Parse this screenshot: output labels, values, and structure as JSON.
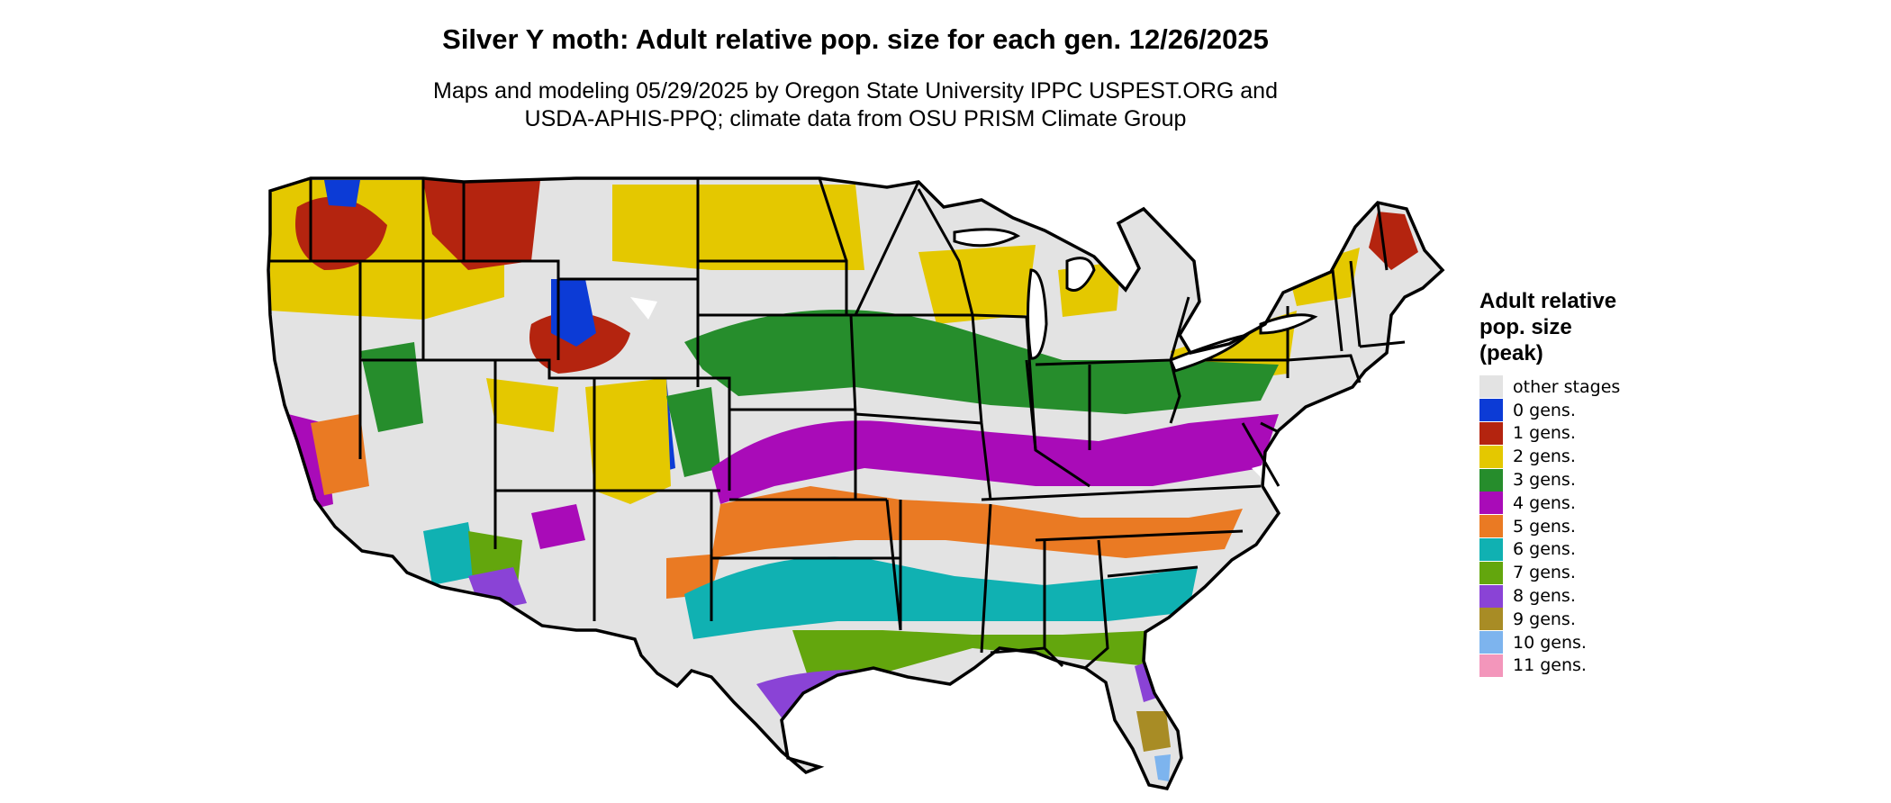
{
  "title": "Silver Y moth: Adult relative pop. size for each gen. 12/26/2025",
  "subtitle_line1": "Maps and modeling 05/29/2025 by Oregon State University IPPC USPEST.ORG and",
  "subtitle_line2": "USDA-APHIS-PPQ; climate data from OSU PRISM Climate Group",
  "legend": {
    "title_line1": "Adult relative",
    "title_line2": "pop. size",
    "title_line3": "(peak)",
    "items": [
      {
        "label": "other stages",
        "color": "#e3e3e3"
      },
      {
        "label": "0 gens.",
        "color": "#0c3bd6"
      },
      {
        "label": "1 gens.",
        "color": "#b4240f"
      },
      {
        "label": "2 gens.",
        "color": "#e4c800"
      },
      {
        "label": "3 gens.",
        "color": "#268d2c"
      },
      {
        "label": "4 gens.",
        "color": "#a90bb8"
      },
      {
        "label": "5 gens.",
        "color": "#ea7a23"
      },
      {
        "label": "6 gens.",
        "color": "#10b1b2"
      },
      {
        "label": "7 gens.",
        "color": "#63a60d"
      },
      {
        "label": "8 gens.",
        "color": "#8a43d6"
      },
      {
        "label": "9 gens.",
        "color": "#a88c25"
      },
      {
        "label": "10 gens.",
        "color": "#7db4ee"
      },
      {
        "label": "11 gens.",
        "color": "#f396bb"
      }
    ]
  }
}
